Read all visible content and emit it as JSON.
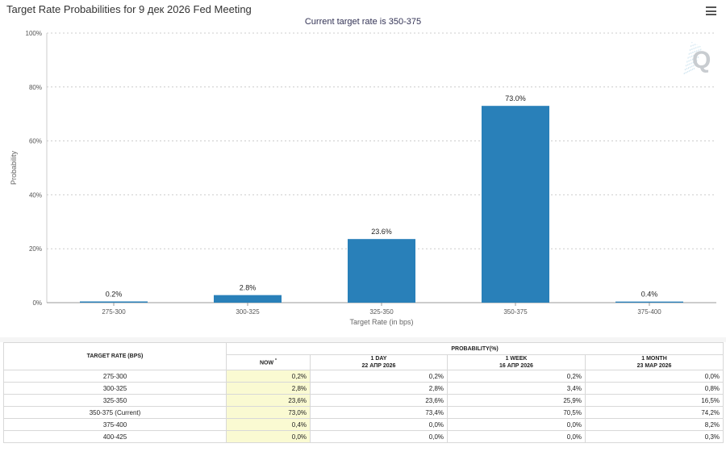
{
  "header": {
    "title": "Target Rate Probabilities for 9 дек 2026 Fed Meeting",
    "subtitle": "Current target rate is 350-375",
    "watermark": "Q"
  },
  "chart_data": {
    "type": "bar",
    "categories": [
      "275-300",
      "300-325",
      "325-350",
      "350-375",
      "375-400"
    ],
    "values": [
      0.2,
      2.8,
      23.6,
      73.0,
      0.4
    ],
    "data_labels": [
      "0.2%",
      "2.8%",
      "23.6%",
      "73.0%",
      "0.4%"
    ],
    "title": "Target Rate Probabilities for 9 дек 2026 Fed Meeting",
    "subtitle": "Current target rate is 350-375",
    "xlabel": "Target Rate (in bps)",
    "ylabel": "Probability",
    "ylim": [
      0,
      100
    ],
    "yticks": [
      0,
      20,
      40,
      60,
      80,
      100
    ],
    "ytick_labels": [
      "0%",
      "20%",
      "40%",
      "60%",
      "80%",
      "100%"
    ],
    "bar_color": "#2980b9",
    "grid": true
  },
  "table": {
    "rate_header": "TARGET RATE (BPS)",
    "probability_header": "PROBABILITY(%)",
    "columns": [
      {
        "line1": "NOW",
        "line2": "",
        "marker": "*"
      },
      {
        "line1": "1 DAY",
        "line2": "22 АПР 2026",
        "marker": ""
      },
      {
        "line1": "1 WEEK",
        "line2": "16 АПР 2026",
        "marker": ""
      },
      {
        "line1": "1 MONTH",
        "line2": "23 МАР 2026",
        "marker": ""
      }
    ],
    "rows": [
      {
        "rate": "275-300",
        "values": [
          "0,2%",
          "0,2%",
          "0,2%",
          "0,0%"
        ]
      },
      {
        "rate": "300-325",
        "values": [
          "2,8%",
          "2,8%",
          "3,4%",
          "0,8%"
        ]
      },
      {
        "rate": "325-350",
        "values": [
          "23,6%",
          "23,6%",
          "25,9%",
          "16,5%"
        ]
      },
      {
        "rate": "350-375 (Current)",
        "values": [
          "73,0%",
          "73,4%",
          "70,5%",
          "74,2%"
        ]
      },
      {
        "rate": "375-400",
        "values": [
          "0,4%",
          "0,0%",
          "0,0%",
          "8,2%"
        ]
      },
      {
        "rate": "400-425",
        "values": [
          "0,0%",
          "0,0%",
          "0,0%",
          "0,3%"
        ]
      }
    ]
  },
  "colors": {
    "now_column_bg": "#fafad2",
    "grid": "#cccccc"
  }
}
